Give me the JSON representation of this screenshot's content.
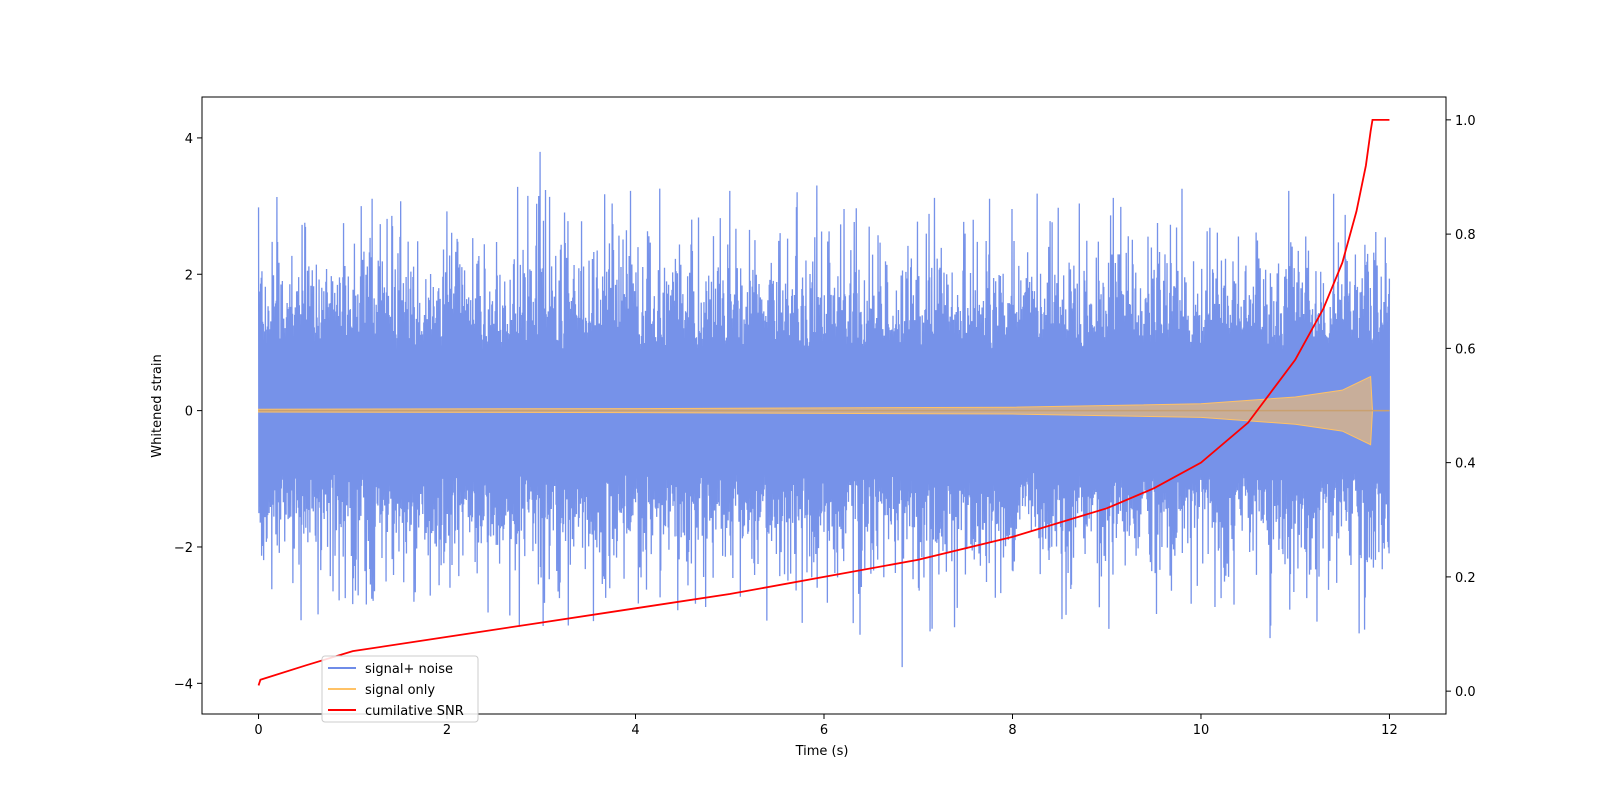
{
  "chart_data": {
    "type": "line",
    "title": "",
    "xlabel": "Time (s)",
    "ylabel_left": "Whitened strain",
    "ylabel_right": "",
    "xlim": [
      -0.6,
      12.6
    ],
    "ylim_left": [
      -4.45,
      4.6
    ],
    "ylim_right": [
      -0.04,
      1.04
    ],
    "x_ticks": [
      0,
      2,
      4,
      6,
      8,
      10,
      12
    ],
    "y_ticks_left": [
      -4,
      -2,
      0,
      2,
      4
    ],
    "y_ticks_right": [
      0.0,
      0.2,
      0.4,
      0.6,
      0.8,
      1.0
    ],
    "grid": false,
    "legend": {
      "placement": "lower-left"
    },
    "series": [
      {
        "name": "signal+ noise",
        "axis": "left",
        "color": "#6f8ce8",
        "x_range": [
          0,
          12
        ],
        "band_min": -3.0,
        "band_max": 3.0,
        "peak_max": 4.15,
        "peak_min": -4.05
      },
      {
        "name": "signal only",
        "axis": "left",
        "color": "#ffc266",
        "x_range": [
          0,
          12
        ],
        "envelope": [
          [
            0,
            0.02
          ],
          [
            4,
            0.03
          ],
          [
            8,
            0.05
          ],
          [
            10,
            0.1
          ],
          [
            11,
            0.2
          ],
          [
            11.5,
            0.3
          ],
          [
            11.8,
            0.5
          ],
          [
            11.82,
            0.0
          ],
          [
            12,
            0.0
          ]
        ]
      },
      {
        "name": "cumilative SNR",
        "axis": "right",
        "color": "#ff0000",
        "x": [
          0,
          0.02,
          0.5,
          1,
          2,
          3,
          4,
          5,
          6,
          7,
          8,
          9,
          9.5,
          10,
          10.5,
          11,
          11.3,
          11.5,
          11.65,
          11.75,
          11.8,
          11.82,
          12
        ],
        "y": [
          0.01,
          0.02,
          0.045,
          0.07,
          0.095,
          0.12,
          0.145,
          0.17,
          0.2,
          0.23,
          0.27,
          0.32,
          0.355,
          0.4,
          0.47,
          0.58,
          0.67,
          0.75,
          0.84,
          0.92,
          0.98,
          1.0,
          1.0
        ]
      }
    ]
  }
}
